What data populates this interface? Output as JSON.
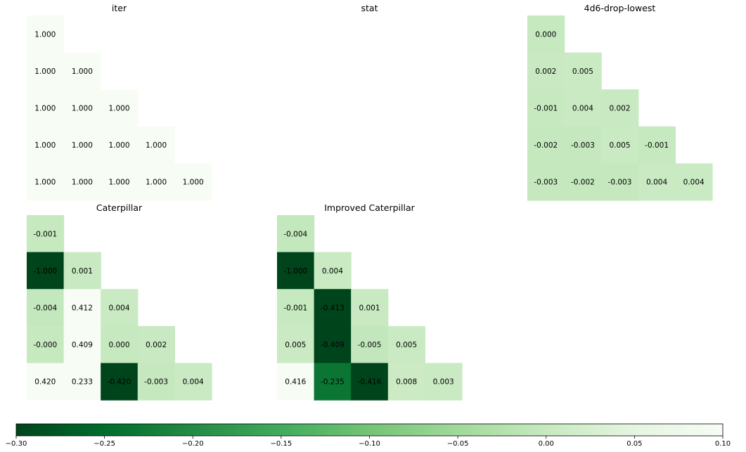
{
  "chart_data": {
    "type": "heatmap",
    "colormap": "Greens_r",
    "vmin": -0.3,
    "vmax": 0.1,
    "panels": [
      {
        "title": "iter",
        "rows": [
          [
            "1.000"
          ],
          [
            "1.000",
            "1.000"
          ],
          [
            "1.000",
            "1.000",
            "1.000"
          ],
          [
            "1.000",
            "1.000",
            "1.000",
            "1.000"
          ],
          [
            "1.000",
            "1.000",
            "1.000",
            "1.000",
            "1.000"
          ]
        ]
      },
      {
        "title": "stat",
        "rows": []
      },
      {
        "title": "4d6-drop-lowest",
        "rows": [
          [
            "0.000"
          ],
          [
            "0.002",
            "0.005"
          ],
          [
            "-0.001",
            "0.004",
            "0.002"
          ],
          [
            "-0.002",
            "-0.003",
            "0.005",
            "-0.001"
          ],
          [
            "-0.003",
            "-0.002",
            "-0.003",
            "0.004",
            "0.004"
          ]
        ]
      },
      {
        "title": "Caterpillar",
        "rows": [
          [
            "-0.001"
          ],
          [
            "-1.000",
            "0.001"
          ],
          [
            "-0.004",
            "0.412",
            "0.004"
          ],
          [
            "-0.000",
            "0.409",
            "0.000",
            "0.002"
          ],
          [
            "0.420",
            "0.233",
            "-0.420",
            "-0.003",
            "0.004"
          ]
        ]
      },
      {
        "title": "Improved Caterpillar",
        "rows": [
          [
            "-0.004"
          ],
          [
            "-1.000",
            "0.004"
          ],
          [
            "-0.001",
            "-0.413",
            "0.001"
          ],
          [
            "0.005",
            "-0.409",
            "-0.005",
            "0.005"
          ],
          [
            "0.416",
            "-0.235",
            "-0.416",
            "0.008",
            "0.003"
          ]
        ]
      }
    ],
    "colorbar": {
      "ticks": [
        -0.3,
        -0.25,
        -0.2,
        -0.15,
        -0.1,
        -0.05,
        0.0,
        0.05,
        0.1
      ],
      "tick_labels": [
        "−0.30",
        "−0.25",
        "−0.20",
        "−0.15",
        "−0.10",
        "−0.05",
        "0.00",
        "0.05",
        "0.10"
      ],
      "orientation": "horizontal"
    }
  }
}
